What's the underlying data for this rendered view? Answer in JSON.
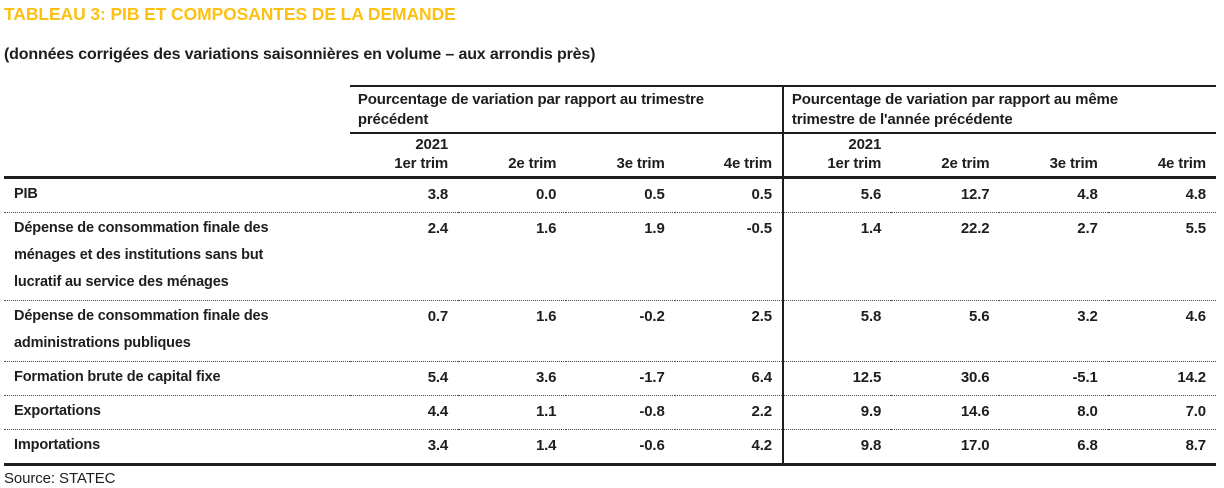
{
  "colors": {
    "title_accent": "#FDC113",
    "text": "#1E1E1E"
  },
  "chart_data": {
    "type": "table",
    "title": "TABLEAU 3: PIB ET COMPOSANTES DE LA DEMANDE",
    "subtitle": "(données corrigées des variations saisonnières en volume – aux arrondis près)",
    "source": "Source: STATEC",
    "column_groups": [
      "Pourcentage de variation par rapport au trimestre précédent",
      "Pourcentage de variation par rapport au même trimestre de l'année précédente"
    ],
    "year": "2021",
    "quarters": [
      "1er trim",
      "2e trim",
      "3e trim",
      "4e trim"
    ],
    "rows": [
      {
        "label": "PIB",
        "prev": [
          "3.8",
          "0.0",
          "0.5",
          "0.5"
        ],
        "yoy": [
          "5.6",
          "12.7",
          "4.8",
          "4.8"
        ]
      },
      {
        "label": "Dépense de consommation finale des ménages et des institutions sans but lucratif au service des ménages",
        "prev": [
          "2.4",
          "1.6",
          "1.9",
          "-0.5"
        ],
        "yoy": [
          "1.4",
          "22.2",
          "2.7",
          "5.5"
        ]
      },
      {
        "label": "Dépense de consommation finale des administrations publiques",
        "prev": [
          "0.7",
          "1.6",
          "-0.2",
          "2.5"
        ],
        "yoy": [
          "5.8",
          "5.6",
          "3.2",
          "4.6"
        ]
      },
      {
        "label": "Formation brute de capital fixe",
        "prev": [
          "5.4",
          "3.6",
          "-1.7",
          "6.4"
        ],
        "yoy": [
          "12.5",
          "30.6",
          "-5.1",
          "14.2"
        ]
      },
      {
        "label": "Exportations",
        "prev": [
          "4.4",
          "1.1",
          "-0.8",
          "2.2"
        ],
        "yoy": [
          "9.9",
          "14.6",
          "8.0",
          "7.0"
        ]
      },
      {
        "label": "Importations",
        "prev": [
          "3.4",
          "1.4",
          "-0.6",
          "4.2"
        ],
        "yoy": [
          "9.8",
          "17.0",
          "6.8",
          "8.7"
        ]
      }
    ]
  }
}
